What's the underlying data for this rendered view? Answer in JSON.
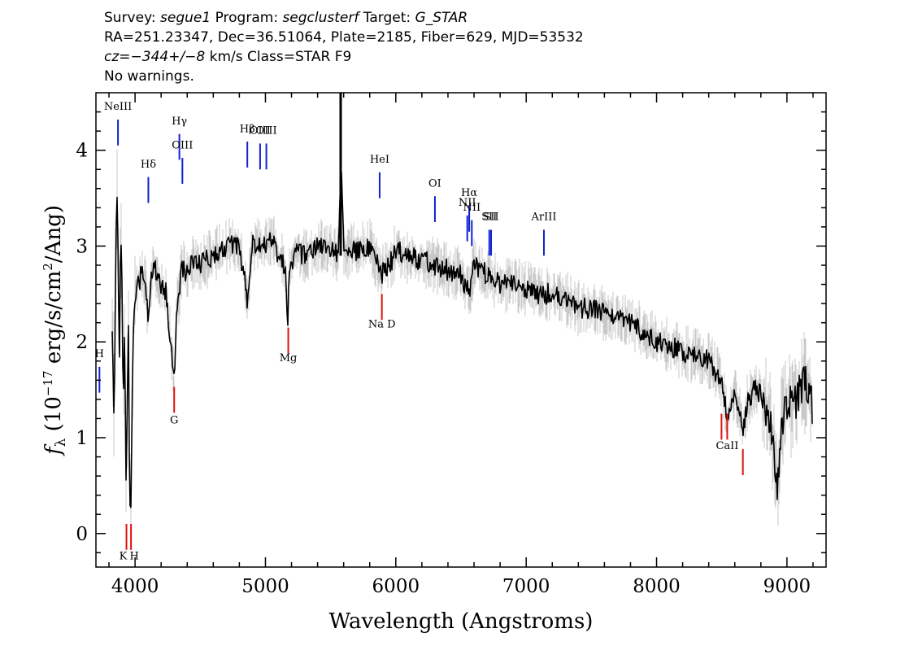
{
  "header": {
    "line1": [
      {
        "text": "Survey: ",
        "italic": false
      },
      {
        "text": "segue1",
        "italic": true
      },
      {
        "text": " Program: ",
        "italic": false
      },
      {
        "text": "segclusterf",
        "italic": true
      },
      {
        "text": " Target: ",
        "italic": false
      },
      {
        "text": "G_STAR",
        "italic": true
      }
    ],
    "line2": "RA=251.23347, Dec=36.51064, Plate=2185, Fiber=629, MJD=53532",
    "line3": [
      {
        "text": "cz=",
        "italic": true
      },
      {
        "text": "−344+/−8",
        "italic": true
      },
      {
        "text": " km/s Class=STAR F9",
        "italic": false
      }
    ],
    "line4": "No warnings."
  },
  "chart_data": {
    "type": "line",
    "xlabel": "Wavelength (Angstroms)",
    "ylabel_parts": [
      "f",
      "λ",
      " (10",
      "−17",
      " erg/s/cm",
      "2",
      "/Ang)"
    ],
    "xlim": [
      3700,
      9300
    ],
    "ylim": [
      -0.35,
      4.6
    ],
    "xticks": [
      4000,
      5000,
      6000,
      7000,
      8000,
      9000
    ],
    "xtick_labels": [
      "4000",
      "5000",
      "6000",
      "7000",
      "8000",
      "9000"
    ],
    "yticks": [
      0,
      1,
      2,
      3,
      4
    ],
    "ytick_labels": [
      "0",
      "1",
      "2",
      "3",
      "4"
    ],
    "series": [
      {
        "color": "#000000",
        "x": [
          3825,
          3840,
          3850,
          3860,
          3870,
          3880,
          3890,
          3900,
          3910,
          3920,
          3933,
          3940,
          3950,
          3958,
          3968,
          3975,
          3985,
          4000,
          4020,
          4050,
          4080,
          4102,
          4130,
          4160,
          4200,
          4240,
          4280,
          4300,
          4310,
          4320,
          4340,
          4360,
          4400,
          4450,
          4500,
          4600,
          4700,
          4800,
          4861,
          4900,
          4950,
          5000,
          5050,
          5100,
          5150,
          5172,
          5185,
          5200,
          5250,
          5300,
          5400,
          5500,
          5560,
          5580,
          5600,
          5700,
          5800,
          5890,
          5950,
          6000,
          6100,
          6200,
          6300,
          6400,
          6500,
          6563,
          6600,
          6700,
          6800,
          6900,
          7000,
          7100,
          7200,
          7300,
          7400,
          7500,
          7600,
          7700,
          7800,
          7900,
          8000,
          8100,
          8200,
          8300,
          8400,
          8500,
          8542,
          8600,
          8662,
          8700,
          8750,
          8800,
          8850,
          8900,
          8930,
          8960,
          9000,
          9050,
          9100,
          9150,
          9200
        ],
        "y": [
          2.1,
          1.2,
          2.6,
          3.6,
          3.0,
          1.8,
          3.1,
          2.7,
          1.2,
          2.2,
          0.3,
          1.5,
          2.2,
          0.5,
          0.2,
          1.0,
          2.0,
          2.45,
          2.6,
          2.7,
          2.6,
          2.2,
          2.75,
          2.75,
          2.6,
          2.5,
          1.9,
          1.6,
          1.9,
          2.4,
          2.5,
          2.8,
          2.7,
          2.85,
          2.8,
          2.9,
          3.0,
          3.0,
          2.45,
          3.0,
          3.05,
          3.0,
          3.1,
          2.9,
          2.8,
          2.25,
          2.8,
          2.85,
          2.95,
          2.9,
          3.0,
          3.0,
          2.9,
          3.9,
          2.95,
          2.95,
          3.0,
          2.7,
          2.8,
          2.95,
          2.9,
          2.85,
          2.8,
          2.75,
          2.7,
          2.5,
          2.8,
          2.7,
          2.6,
          2.6,
          2.55,
          2.5,
          2.5,
          2.45,
          2.35,
          2.35,
          2.3,
          2.25,
          2.2,
          2.1,
          2.0,
          1.95,
          1.9,
          1.85,
          1.8,
          1.6,
          1.2,
          1.5,
          1.1,
          1.4,
          1.5,
          1.45,
          1.3,
          0.9,
          0.5,
          1.2,
          1.4,
          1.3,
          1.5,
          1.6,
          1.3
        ]
      }
    ],
    "emission_lines": [
      {
        "name": "NeIII",
        "wave": 3869
      },
      {
        "name": "Hδ",
        "wave": 4102
      },
      {
        "name": "Hγ",
        "wave": 4340
      },
      {
        "name": "OIII",
        "wave": 4363
      },
      {
        "name": "Hβ",
        "wave": 4861
      },
      {
        "name": "OIII",
        "wave": 4959
      },
      {
        "name": "OIII",
        "wave": 5007
      },
      {
        "name": "HeI",
        "wave": 5876
      },
      {
        "name": "OI",
        "wave": 6300
      },
      {
        "name": "NII",
        "wave": 6548
      },
      {
        "name": "Hα",
        "wave": 6563
      },
      {
        "name": "NII",
        "wave": 6583
      },
      {
        "name": "SII",
        "wave": 6717
      },
      {
        "name": "SII",
        "wave": 6731
      },
      {
        "name": "ArIII",
        "wave": 7136
      },
      {
        "name": "H",
        "wave": 3727
      }
    ],
    "absorption_lines": [
      {
        "name": "K",
        "wave": 3934
      },
      {
        "name": "H",
        "wave": 3969
      },
      {
        "name": "G",
        "wave": 4300
      },
      {
        "name": "Mg",
        "wave": 5175
      },
      {
        "name": "Na D",
        "wave": 5893
      },
      {
        "name": "CaII",
        "wave": 8498
      },
      {
        "name": "CaII",
        "wave": 8542
      },
      {
        "name": "CaII",
        "wave": 8662
      }
    ],
    "line_colors": {
      "emission": "#1020d0",
      "absorption": "#e01010",
      "error": "#c8c8c8",
      "flux": "#000000"
    }
  }
}
